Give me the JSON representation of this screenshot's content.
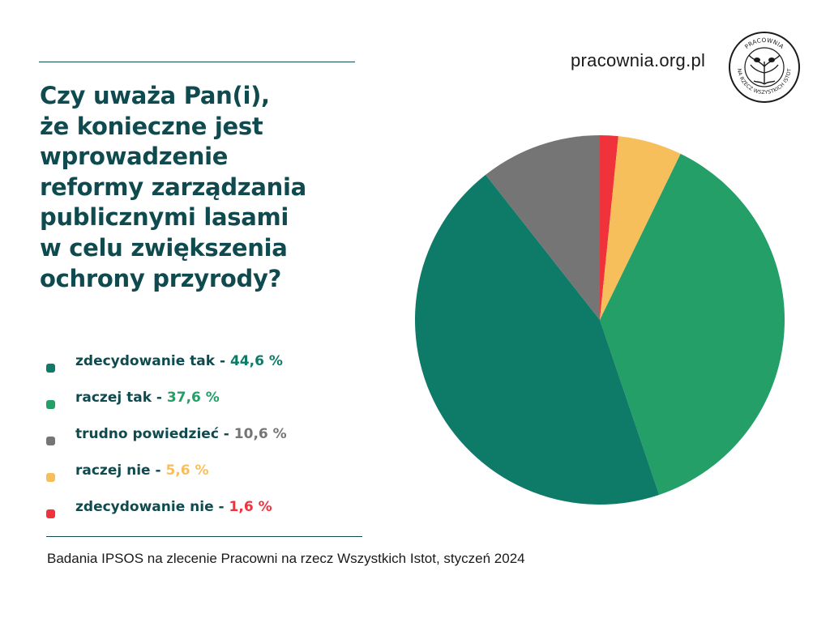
{
  "header": {
    "site": "pracownia.org.pl",
    "logo_text": "PRACOWNIA NA RZECZ WSZYSTKICH ISTOT"
  },
  "question": "Czy uważa Pan(i),\nże konieczne jest\nwprowadzenie\nreformy zarządzania\npublicznymi lasami\nw celu zwiększenia\nochrony przyrody?",
  "legend": [
    {
      "label": "zdecydowanie tak",
      "sep": " - ",
      "value_text": "44,6 %",
      "color": "#0e7a68"
    },
    {
      "label": "raczej tak",
      "sep": " - ",
      "value_text": "37,6 %",
      "color": "#239f67"
    },
    {
      "label": "trudno powiedzieć",
      "sep": " - ",
      "value_text": "10,6 %",
      "color": "#757575"
    },
    {
      "label": "raczej nie",
      "sep": " - ",
      "value_text": "5,6 %",
      "color": "#f7be5c"
    },
    {
      "label": "zdecydowanie nie",
      "sep": " - ",
      "value_text": "1,6 %",
      "color": "#f0333a"
    }
  ],
  "source": "Badania IPSOS na zlecenie Pracowni na rzecz Wszystkich Istot, styczeń 2024",
  "chart_data": {
    "type": "pie",
    "title": "Czy uważa Pan(i), że konieczne jest wprowadzenie reformy zarządzania publicznymi lasami w celu zwiększenia ochrony przyrody?",
    "legend_position": "left",
    "categories": [
      "zdecydowanie nie",
      "raczej nie",
      "raczej tak",
      "zdecydowanie tak",
      "trudno powiedzieć"
    ],
    "values": [
      1.6,
      5.6,
      37.6,
      44.6,
      10.6
    ],
    "colors": [
      "#f0333a",
      "#f7be5c",
      "#239f67",
      "#0e7a68",
      "#757575"
    ],
    "unit": "%"
  }
}
